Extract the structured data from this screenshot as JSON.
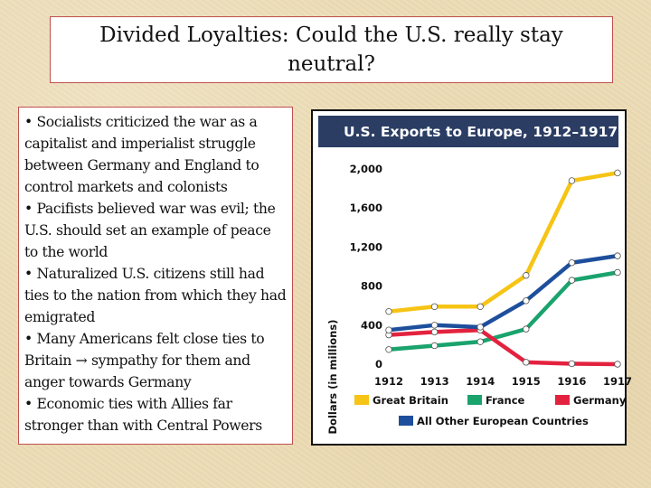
{
  "slide": {
    "title": "Divided Loyalties: Could the U.S. really stay neutral?",
    "bullets": [
      "• Socialists criticized the war as a capitalist and imperialist struggle between Germany and England to control markets and colonists",
      "• Pacifists believed war was evil; the U.S. should set an example of peace to the world",
      "• Naturalized U.S. citizens still had ties to the nation from which they had emigrated",
      "• Many Americans felt close ties to Britain → sympathy for them and anger towards Germany",
      "• Economic ties with Allies far stronger than with Central Powers"
    ]
  },
  "chart_data": {
    "type": "line",
    "title": "U.S. Exports to Europe, 1912–1917",
    "xlabel": "",
    "ylabel": "Dollars (in millions)",
    "x": [
      "1912",
      "1913",
      "1914",
      "1915",
      "1916",
      "1917"
    ],
    "ylim": [
      0,
      2000
    ],
    "yticks": [
      "0",
      "400",
      "800",
      "1,200",
      "1,600",
      "2,000"
    ],
    "ytick_values": [
      0,
      400,
      800,
      1200,
      1600,
      2000
    ],
    "grid": false,
    "legend_position": "bottom",
    "series": [
      {
        "name": "Great Britain",
        "color": "#f6c414",
        "values": [
          540,
          590,
          590,
          910,
          1880,
          1960
        ]
      },
      {
        "name": "France",
        "color": "#1aa36d",
        "values": [
          150,
          190,
          230,
          360,
          860,
          940
        ]
      },
      {
        "name": "Germany",
        "color": "#e3223f",
        "values": [
          300,
          330,
          350,
          20,
          5,
          0
        ]
      },
      {
        "name": "All Other European Countries",
        "color": "#1d4f9c",
        "values": [
          350,
          400,
          380,
          650,
          1040,
          1110
        ]
      }
    ]
  }
}
